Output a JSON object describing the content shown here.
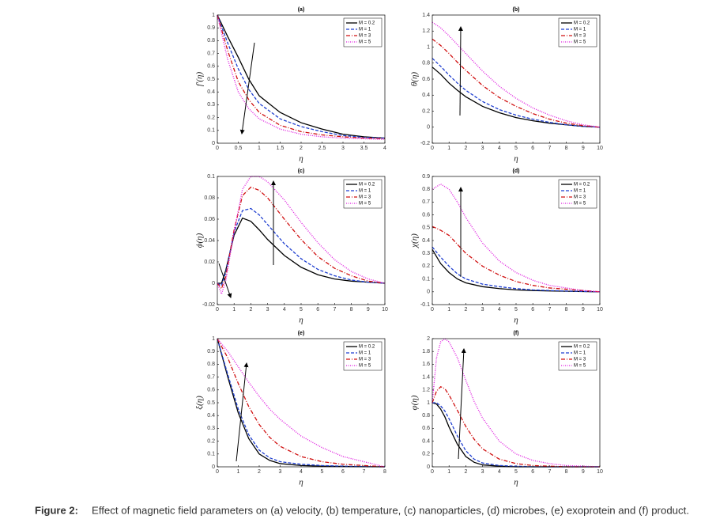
{
  "chart_data": [
    {
      "type": "line",
      "title": "(a)",
      "x_label": "η",
      "y_label": "f′(η)",
      "x": [
        0,
        0.25,
        0.5,
        0.75,
        1,
        1.5,
        2,
        2.5,
        3,
        3.5,
        4
      ],
      "xlim": [
        0,
        4
      ],
      "ylim": [
        0,
        1
      ],
      "xticks": [
        0,
        0.5,
        1,
        1.5,
        2,
        2.5,
        3,
        3.5,
        4
      ],
      "yticks": [
        0,
        0.1,
        0.2,
        0.3,
        0.4,
        0.5,
        0.6,
        0.7,
        0.8,
        0.9,
        1
      ],
      "legend": "upper right",
      "series": [
        {
          "name": "M = 0.2",
          "color": "#000000",
          "style": "solid",
          "values": [
            1,
            0.83,
            0.67,
            0.5,
            0.37,
            0.24,
            0.16,
            0.11,
            0.07,
            0.05,
            0.04
          ]
        },
        {
          "name": "M = 1",
          "color": "#1f3fd0",
          "style": "dashed",
          "values": [
            1,
            0.78,
            0.58,
            0.42,
            0.31,
            0.19,
            0.13,
            0.09,
            0.06,
            0.045,
            0.04
          ]
        },
        {
          "name": "M = 3",
          "color": "#d01010",
          "style": "dashdot",
          "values": [
            1,
            0.72,
            0.48,
            0.34,
            0.24,
            0.14,
            0.09,
            0.065,
            0.05,
            0.04,
            0.035
          ]
        },
        {
          "name": "M = 5",
          "color": "#e020e0",
          "style": "dotted",
          "values": [
            1,
            0.65,
            0.4,
            0.27,
            0.19,
            0.11,
            0.07,
            0.05,
            0.04,
            0.035,
            0.03
          ]
        }
      ]
    },
    {
      "type": "line",
      "title": "(b)",
      "x_label": "η",
      "y_label": "θ(η)",
      "x": [
        0,
        0.5,
        1,
        1.5,
        2,
        3,
        4,
        5,
        6,
        7,
        8,
        9,
        10
      ],
      "xlim": [
        0,
        10
      ],
      "ylim": [
        -0.2,
        1.4
      ],
      "xticks": [
        0,
        1,
        2,
        3,
        4,
        5,
        6,
        7,
        8,
        9,
        10
      ],
      "yticks": [
        -0.2,
        0,
        0.2,
        0.4,
        0.6,
        0.8,
        1,
        1.2,
        1.4
      ],
      "legend": "upper right",
      "series": [
        {
          "name": "M = 0.2",
          "color": "#000000",
          "style": "solid",
          "values": [
            0.75,
            0.66,
            0.55,
            0.46,
            0.38,
            0.26,
            0.18,
            0.12,
            0.08,
            0.05,
            0.03,
            0.01,
            0
          ]
        },
        {
          "name": "M = 1",
          "color": "#1f3fd0",
          "style": "dashed",
          "values": [
            0.86,
            0.76,
            0.65,
            0.55,
            0.46,
            0.32,
            0.22,
            0.15,
            0.1,
            0.06,
            0.03,
            0.01,
            0
          ]
        },
        {
          "name": "M = 3",
          "color": "#d01010",
          "style": "dashdot",
          "values": [
            1.1,
            1.02,
            0.92,
            0.81,
            0.71,
            0.52,
            0.37,
            0.26,
            0.17,
            0.1,
            0.05,
            0.02,
            0
          ]
        },
        {
          "name": "M = 5",
          "color": "#e020e0",
          "style": "dotted",
          "values": [
            1.31,
            1.24,
            1.14,
            1.03,
            0.92,
            0.7,
            0.51,
            0.36,
            0.24,
            0.15,
            0.08,
            0.03,
            0
          ]
        }
      ]
    },
    {
      "type": "line",
      "title": "(c)",
      "x_label": "η",
      "y_label": "ϕ(η)",
      "x": [
        0,
        0.25,
        0.5,
        1,
        1.5,
        2,
        2.5,
        3,
        4,
        5,
        6,
        7,
        8,
        9,
        10
      ],
      "xlim": [
        0,
        10
      ],
      "ylim": [
        -0.02,
        0.1
      ],
      "xticks": [
        0,
        1,
        2,
        3,
        4,
        5,
        6,
        7,
        8,
        9,
        10
      ],
      "yticks": [
        -0.02,
        0,
        0.02,
        0.04,
        0.06,
        0.08,
        0.1
      ],
      "legend": "upper right",
      "series": [
        {
          "name": "M = 0.2",
          "color": "#000000",
          "style": "solid",
          "values": [
            0,
            0,
            0.012,
            0.045,
            0.061,
            0.058,
            0.05,
            0.041,
            0.026,
            0.015,
            0.008,
            0.004,
            0.002,
            0.001,
            0
          ]
        },
        {
          "name": "M = 1",
          "color": "#1f3fd0",
          "style": "dashed",
          "values": [
            0,
            -0.002,
            0.01,
            0.048,
            0.068,
            0.07,
            0.064,
            0.055,
            0.037,
            0.023,
            0.013,
            0.007,
            0.003,
            0.001,
            0
          ]
        },
        {
          "name": "M = 3",
          "color": "#d01010",
          "style": "dashdot",
          "values": [
            0,
            -0.005,
            0.006,
            0.05,
            0.082,
            0.09,
            0.087,
            0.08,
            0.06,
            0.041,
            0.025,
            0.014,
            0.007,
            0.002,
            0
          ]
        },
        {
          "name": "M = 5",
          "color": "#e020e0",
          "style": "dotted",
          "values": [
            0,
            -0.01,
            0.002,
            0.048,
            0.088,
            0.1,
            0.1,
            0.095,
            0.078,
            0.057,
            0.038,
            0.022,
            0.011,
            0.004,
            0
          ]
        }
      ]
    },
    {
      "type": "line",
      "title": "(d)",
      "x_label": "η",
      "y_label": "χ(η)",
      "x": [
        0,
        0.5,
        1,
        1.5,
        2,
        3,
        4,
        5,
        6,
        7,
        8,
        9,
        10
      ],
      "xlim": [
        0,
        10
      ],
      "ylim": [
        -0.1,
        0.9
      ],
      "xticks": [
        0,
        1,
        2,
        3,
        4,
        5,
        6,
        7,
        8,
        9,
        10
      ],
      "yticks": [
        -0.1,
        0,
        0.1,
        0.2,
        0.3,
        0.4,
        0.5,
        0.6,
        0.7,
        0.8,
        0.9
      ],
      "legend": "upper right",
      "series": [
        {
          "name": "M = 0.2",
          "color": "#000000",
          "style": "solid",
          "values": [
            0.33,
            0.22,
            0.15,
            0.1,
            0.07,
            0.04,
            0.025,
            0.015,
            0.01,
            0.007,
            0.004,
            0.002,
            0
          ]
        },
        {
          "name": "M = 1",
          "color": "#1f3fd0",
          "style": "dashed",
          "values": [
            0.35,
            0.27,
            0.2,
            0.14,
            0.1,
            0.06,
            0.04,
            0.025,
            0.015,
            0.01,
            0.006,
            0.003,
            0
          ]
        },
        {
          "name": "M = 3",
          "color": "#d01010",
          "style": "dashdot",
          "values": [
            0.51,
            0.48,
            0.44,
            0.37,
            0.3,
            0.2,
            0.13,
            0.08,
            0.05,
            0.03,
            0.02,
            0.01,
            0
          ]
        },
        {
          "name": "M = 5",
          "color": "#e020e0",
          "style": "dotted",
          "values": [
            0.8,
            0.84,
            0.8,
            0.7,
            0.58,
            0.38,
            0.24,
            0.15,
            0.09,
            0.05,
            0.03,
            0.01,
            0
          ]
        }
      ]
    },
    {
      "type": "line",
      "title": "(e)",
      "x_label": "η",
      "y_label": "ξ(η)",
      "x": [
        0,
        0.5,
        1,
        1.5,
        2,
        2.5,
        3,
        4,
        5,
        6,
        7,
        8
      ],
      "xlim": [
        0,
        8
      ],
      "ylim": [
        0,
        1
      ],
      "xticks": [
        0,
        1,
        2,
        3,
        4,
        5,
        6,
        7,
        8
      ],
      "yticks": [
        0,
        0.1,
        0.2,
        0.3,
        0.4,
        0.5,
        0.6,
        0.7,
        0.8,
        0.9,
        1
      ],
      "legend": "upper right",
      "series": [
        {
          "name": "M = 0.2",
          "color": "#000000",
          "style": "solid",
          "values": [
            1,
            0.7,
            0.42,
            0.22,
            0.1,
            0.05,
            0.025,
            0.01,
            0.005,
            0.003,
            0.001,
            0
          ]
        },
        {
          "name": "M = 1",
          "color": "#1f3fd0",
          "style": "dashed",
          "values": [
            1,
            0.72,
            0.45,
            0.25,
            0.13,
            0.07,
            0.04,
            0.02,
            0.01,
            0.005,
            0.002,
            0
          ]
        },
        {
          "name": "M = 3",
          "color": "#d01010",
          "style": "dashdot",
          "values": [
            1,
            0.85,
            0.65,
            0.47,
            0.33,
            0.23,
            0.16,
            0.08,
            0.04,
            0.02,
            0.01,
            0
          ]
        },
        {
          "name": "M = 5",
          "color": "#e020e0",
          "style": "dotted",
          "values": [
            1,
            0.9,
            0.78,
            0.66,
            0.55,
            0.45,
            0.37,
            0.24,
            0.15,
            0.08,
            0.04,
            0
          ]
        }
      ]
    },
    {
      "type": "line",
      "title": "(f)",
      "x_label": "η",
      "y_label": "φ(η)",
      "x": [
        0,
        0.25,
        0.5,
        0.75,
        1,
        1.5,
        2,
        2.5,
        3,
        4,
        5,
        6,
        7,
        8,
        9,
        10
      ],
      "xlim": [
        0,
        10
      ],
      "ylim": [
        0,
        2
      ],
      "xticks": [
        0,
        1,
        2,
        3,
        4,
        5,
        6,
        7,
        8,
        9,
        10
      ],
      "yticks": [
        0,
        0.2,
        0.4,
        0.6,
        0.8,
        1,
        1.2,
        1.4,
        1.6,
        1.8,
        2
      ],
      "legend": "upper right",
      "series": [
        {
          "name": "M = 0.2",
          "color": "#000000",
          "style": "solid",
          "values": [
            1,
            0.98,
            0.9,
            0.78,
            0.62,
            0.35,
            0.16,
            0.07,
            0.03,
            0.01,
            0,
            0,
            0,
            0,
            0,
            0
          ]
        },
        {
          "name": "M = 1",
          "color": "#1f3fd0",
          "style": "dashed",
          "values": [
            1,
            1,
            0.95,
            0.87,
            0.75,
            0.48,
            0.25,
            0.12,
            0.06,
            0.02,
            0.01,
            0,
            0,
            0,
            0,
            0
          ]
        },
        {
          "name": "M = 3",
          "color": "#d01010",
          "style": "dashdot",
          "values": [
            1,
            1.18,
            1.25,
            1.22,
            1.12,
            0.88,
            0.63,
            0.43,
            0.28,
            0.12,
            0.05,
            0.02,
            0.01,
            0,
            0,
            0
          ]
        },
        {
          "name": "M = 5",
          "color": "#e020e0",
          "style": "dotted",
          "values": [
            1,
            1.7,
            1.95,
            2,
            1.95,
            1.7,
            1.35,
            1.02,
            0.76,
            0.4,
            0.2,
            0.1,
            0.05,
            0.02,
            0.01,
            0
          ]
        }
      ]
    }
  ],
  "caption": {
    "label": "Figure 2:",
    "text": "Effect of magnetic field parameters on (a) velocity, (b) temperature, (c) nanoparticles, (d) microbes, (e) exoprotein and (f) product."
  }
}
